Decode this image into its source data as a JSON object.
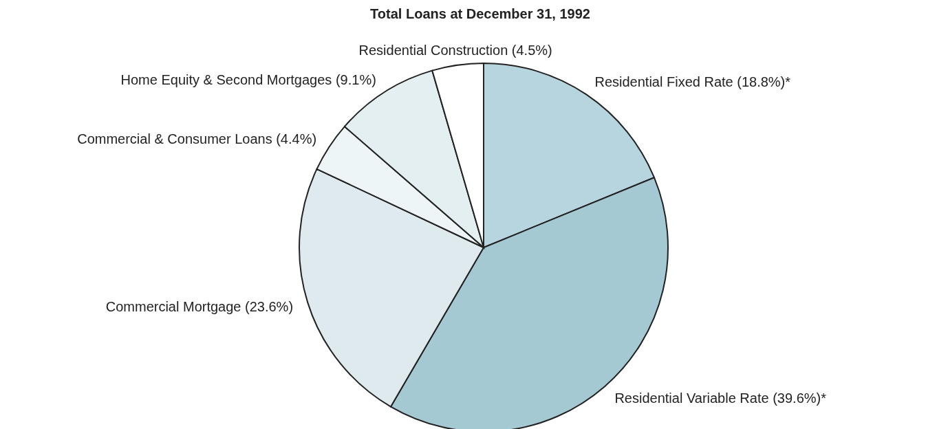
{
  "chart_data": {
    "type": "pie",
    "title": "Total Loans at December 31, 1992",
    "categories": [
      "Residential Fixed Rate",
      "Residential Variable Rate",
      "Commercial Mortgage",
      "Commercial & Consumer Loans",
      "Home Equity & Second Mortgages",
      "Residential Construction"
    ],
    "values": [
      18.8,
      39.6,
      23.6,
      4.4,
      9.1,
      4.5
    ],
    "value_labels": [
      "(18.8%)*",
      "(39.6%)*",
      "(23.6%)",
      "(4.4%)",
      "(9.1%)",
      "(4.5%)"
    ],
    "colors": [
      "#b7d5de",
      "#a5c9d3",
      "#dfeaee",
      "#eef5f7",
      "#e4eff2",
      "#ffffff"
    ]
  }
}
